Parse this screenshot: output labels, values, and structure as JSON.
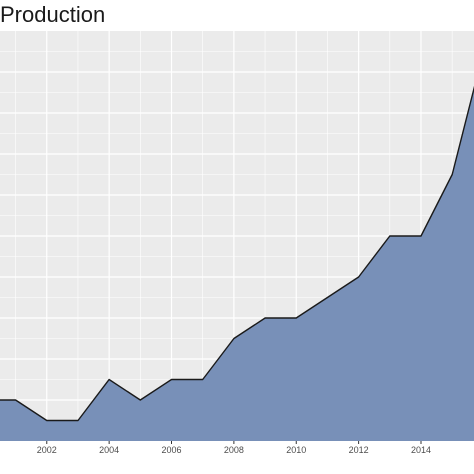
{
  "chart_data": {
    "type": "area",
    "title": "Production",
    "xlabel": "",
    "ylabel": "",
    "x": [
      2000,
      2001,
      2002,
      2003,
      2004,
      2005,
      2006,
      2007,
      2008,
      2009,
      2010,
      2011,
      2012,
      2013,
      2014,
      2015,
      2016
    ],
    "values": [
      2,
      2,
      1,
      1,
      3,
      2,
      3,
      3,
      5,
      6,
      6,
      7,
      8,
      10,
      10,
      13,
      19
    ],
    "xlim": [
      2000.5,
      2015.7
    ],
    "ylim": [
      0,
      20
    ],
    "x_ticks": [
      2002,
      2004,
      2006,
      2008,
      2010,
      2012,
      2014
    ],
    "x_tick_labels": [
      "2002",
      "2004",
      "2006",
      "2008",
      "2010",
      "2012",
      "2014"
    ],
    "grid": true,
    "colors": {
      "fill": "#7890b8",
      "line": "#1a1a1a",
      "panel": "#ebebeb",
      "grid": "#ffffff"
    }
  }
}
